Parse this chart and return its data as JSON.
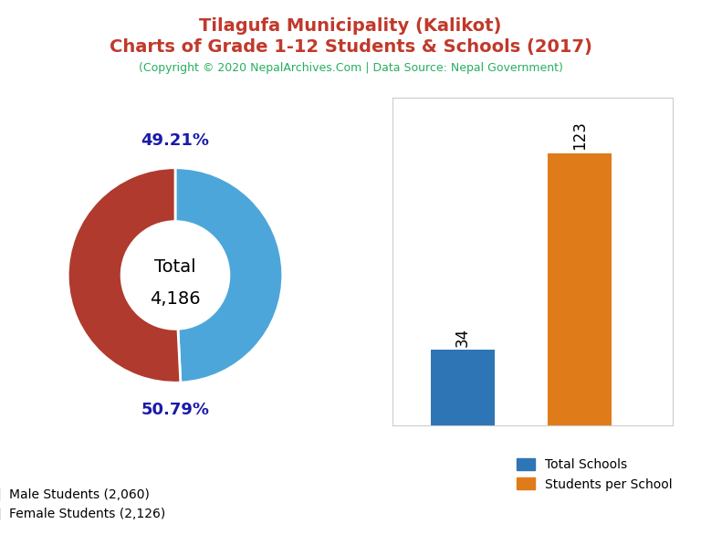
{
  "title_line1": "Tilagufa Municipality (Kalikot)",
  "title_line2": "Charts of Grade 1-12 Students & Schools (2017)",
  "subtitle": "(Copyright © 2020 NepalArchives.Com | Data Source: Nepal Government)",
  "title_color": "#c0392b",
  "subtitle_color": "#27ae60",
  "male_students": 2060,
  "female_students": 2126,
  "total_students": 4186,
  "male_pct": "49.21%",
  "female_pct": "50.79%",
  "donut_colors": [
    "#4da6d9",
    "#b03a2e"
  ],
  "pct_label_color": "#1a1aaa",
  "total_label_line1": "Total",
  "total_label_line2": "4,186",
  "total_label_fontsize": 14,
  "total_label_color": "black",
  "legend_male": "Male Students (2,060)",
  "legend_female": "Female Students (2,126)",
  "bar_values": [
    34,
    123
  ],
  "bar_colors": [
    "#2e75b6",
    "#e07b1a"
  ],
  "bar_labels": [
    "Total Schools",
    "Students per School"
  ],
  "bar_annotation_color": "black",
  "bar_annotation_fontsize": 12,
  "background_color": "#ffffff",
  "pct_label_fontsize": 13,
  "title_fontsize": 14,
  "subtitle_fontsize": 9
}
